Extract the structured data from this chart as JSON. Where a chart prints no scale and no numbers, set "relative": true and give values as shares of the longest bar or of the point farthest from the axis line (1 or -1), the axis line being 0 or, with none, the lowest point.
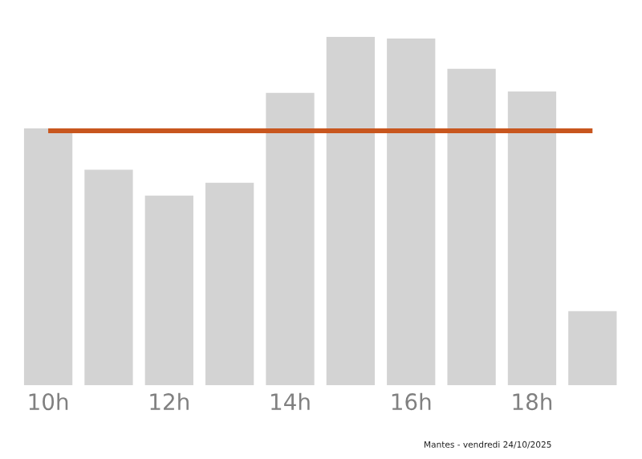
{
  "chart_data": {
    "type": "bar",
    "relative": true,
    "categories": [
      "10h",
      null,
      "12h",
      null,
      "14h",
      null,
      "16h",
      null,
      "18h",
      null
    ],
    "values": [
      0.737,
      0.618,
      0.544,
      0.581,
      0.839,
      1,
      0.995,
      0.908,
      0.843,
      0.212
    ],
    "color": "#d3d3d3",
    "ref_lines": [
      {
        "axis": "y",
        "value": 0.73,
        "color": "#c8561e"
      }
    ],
    "annotations": [
      "Mantes - vendredi 24/10/2025"
    ],
    "grid": false,
    "legend": false
  }
}
